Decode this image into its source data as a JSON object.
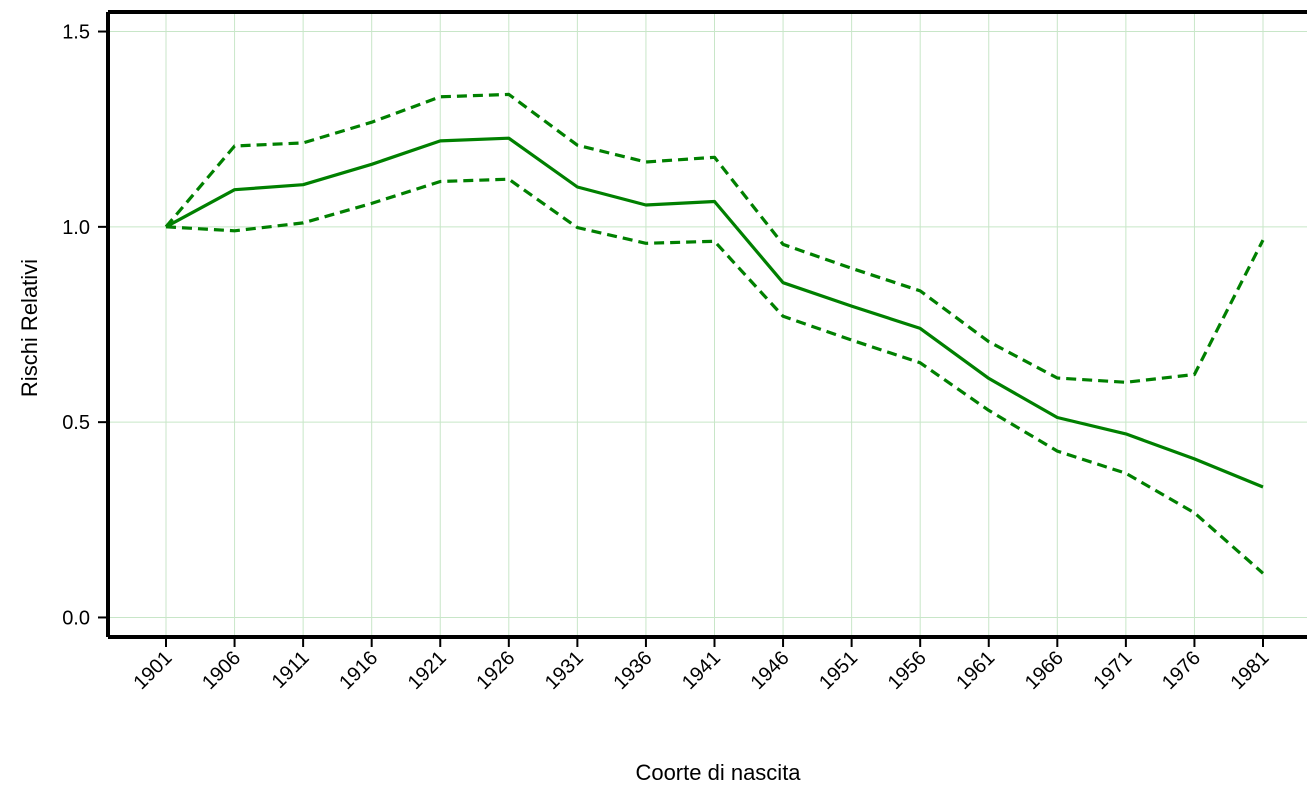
{
  "chart_data": {
    "type": "line",
    "xlabel": "Coorte di nascita",
    "ylabel": "Rischi Relativi",
    "categories": [
      "1901",
      "1906",
      "1911",
      "1916",
      "1921",
      "1926",
      "1931",
      "1936",
      "1941",
      "1946",
      "1951",
      "1956",
      "1961",
      "1966",
      "1971",
      "1976",
      "1981"
    ],
    "y_ticks": [
      "0.0",
      "0.5",
      "1.0",
      "1.5"
    ],
    "ylim": [
      -0.05,
      1.55
    ],
    "grid": true,
    "series": [
      {
        "style": "solid",
        "color": "#008000",
        "values": [
          1.0,
          1.095,
          1.108,
          1.16,
          1.22,
          1.227,
          1.102,
          1.056,
          1.065,
          0.857,
          0.797,
          0.74,
          0.612,
          0.512,
          0.47,
          0.406,
          0.334
        ]
      },
      {
        "style": "dashed",
        "color": "#008000",
        "values": [
          1.0,
          1.207,
          1.215,
          1.268,
          1.333,
          1.339,
          1.209,
          1.166,
          1.178,
          0.955,
          0.894,
          0.836,
          0.706,
          0.613,
          0.602,
          0.622,
          0.966
        ]
      },
      {
        "style": "dashed",
        "color": "#008000",
        "values": [
          1.0,
          0.99,
          1.01,
          1.06,
          1.116,
          1.122,
          0.998,
          0.958,
          0.963,
          0.771,
          0.71,
          0.652,
          0.53,
          0.426,
          0.369,
          0.268,
          0.113
        ]
      }
    ],
    "grid_color": "#c8e6c8"
  }
}
